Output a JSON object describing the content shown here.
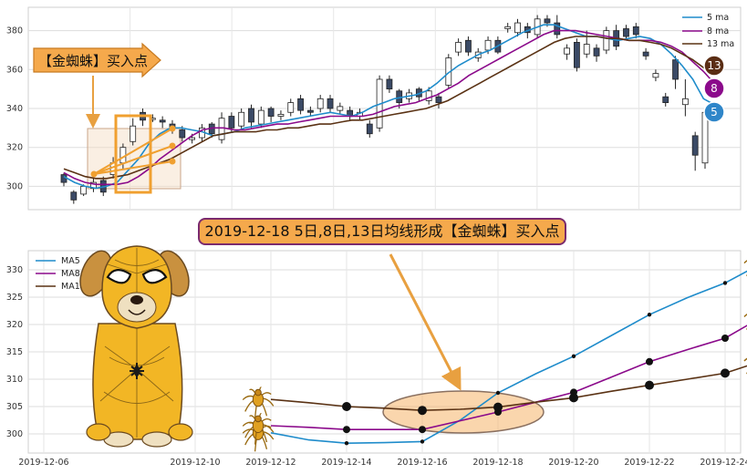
{
  "top_chart": {
    "callout_buy": "【金蜘蛛】买入点",
    "badges": [
      "13",
      "8",
      "5"
    ],
    "legend": [
      "5 ma",
      "8 ma",
      "13 ma"
    ],
    "colors": {
      "ma5": "#1f8ccb",
      "ma8": "#8b0a8b",
      "ma13": "#5a3214",
      "bear": "#3b4a66",
      "bull": "#ffffff",
      "highlight": "#f0a030"
    }
  },
  "bottom_chart": {
    "headline": "2019-12-18 5日,8日,13日均线形成【金蜘蛛】买入点",
    "legend": [
      "MA5",
      "MA8",
      "MA13"
    ]
  },
  "chart_data": [
    {
      "type": "candlestick",
      "title": "",
      "ylim": [
        288,
        392
      ],
      "yticks": [
        "300",
        "320",
        "340",
        "360",
        "380"
      ],
      "series": [
        {
          "name": "5 ma",
          "values": [
            305,
            302,
            300,
            299,
            300,
            302,
            308,
            314,
            322,
            327,
            330,
            330,
            329,
            328,
            326,
            327,
            328,
            330,
            331,
            332,
            333,
            334,
            335,
            336,
            337,
            338,
            337,
            336,
            338,
            341,
            343,
            345,
            346,
            347,
            349,
            353,
            358,
            362,
            365,
            368,
            370,
            373,
            376,
            379,
            381,
            383,
            383,
            381,
            379,
            377,
            377,
            376,
            375,
            376,
            377,
            376,
            373,
            368,
            362,
            355,
            345,
            342
          ]
        },
        {
          "name": "8 ma",
          "values": [
            307,
            304,
            302,
            301,
            301,
            301,
            302,
            305,
            309,
            314,
            318,
            322,
            326,
            329,
            330,
            330,
            329,
            329,
            330,
            331,
            332,
            332,
            333,
            334,
            335,
            336,
            336,
            336,
            336,
            337,
            339,
            341,
            342,
            343,
            345,
            347,
            350,
            353,
            357,
            360,
            363,
            366,
            369,
            372,
            375,
            378,
            380,
            380,
            380,
            379,
            378,
            377,
            376,
            375,
            375,
            375,
            374,
            372,
            369,
            364,
            359,
            353
          ]
        },
        {
          "name": "13 ma",
          "values": [
            309,
            307,
            305,
            304,
            304,
            305,
            306,
            308,
            310,
            312,
            314,
            317,
            320,
            323,
            326,
            327,
            328,
            328,
            328,
            329,
            329,
            330,
            330,
            331,
            332,
            332,
            333,
            334,
            334,
            335,
            336,
            337,
            338,
            339,
            340,
            342,
            344,
            347,
            350,
            353,
            356,
            359,
            362,
            365,
            368,
            371,
            374,
            376,
            377,
            377,
            377,
            376,
            376,
            375,
            375,
            374,
            373,
            371,
            368,
            365,
            361,
            358
          ]
        }
      ],
      "candles": [
        [
          306,
          302,
          307,
          300
        ],
        [
          297,
          293,
          298,
          291
        ],
        [
          296,
          300,
          301,
          295
        ],
        [
          299,
          302,
          304,
          297
        ],
        [
          303,
          297,
          305,
          295
        ],
        [
          306,
          312,
          315,
          304
        ],
        [
          312,
          320,
          322,
          309
        ],
        [
          323,
          331,
          335,
          321
        ],
        [
          338,
          334,
          340,
          331
        ],
        [
          335,
          335,
          337,
          333
        ],
        [
          334,
          333,
          336,
          330
        ],
        [
          332,
          330,
          334,
          327
        ],
        [
          329,
          325,
          331,
          323
        ],
        [
          324,
          325,
          327,
          322
        ],
        [
          325,
          330,
          332,
          323
        ],
        [
          332,
          327,
          333,
          325
        ],
        [
          324,
          335,
          338,
          322
        ],
        [
          336,
          330,
          338,
          328
        ],
        [
          331,
          338,
          340,
          329
        ],
        [
          340,
          333,
          342,
          330
        ],
        [
          332,
          339,
          341,
          330
        ],
        [
          340,
          336,
          341,
          333
        ],
        [
          336,
          337,
          339,
          334
        ],
        [
          338,
          343,
          345,
          336
        ],
        [
          345,
          339,
          347,
          337
        ],
        [
          339,
          338,
          341,
          336
        ],
        [
          340,
          345,
          347,
          338
        ],
        [
          345,
          340,
          347,
          338
        ],
        [
          339,
          341,
          343,
          337
        ],
        [
          339,
          336,
          341,
          334
        ],
        [
          336,
          338,
          340,
          334
        ],
        [
          332,
          327,
          334,
          325
        ],
        [
          330,
          355,
          357,
          328
        ],
        [
          355,
          350,
          357,
          348
        ],
        [
          349,
          343,
          350,
          340
        ],
        [
          345,
          348,
          350,
          343
        ],
        [
          350,
          346,
          351,
          344
        ],
        [
          344,
          349,
          351,
          342
        ],
        [
          346,
          343,
          348,
          340
        ],
        [
          352,
          366,
          368,
          350
        ],
        [
          369,
          374,
          376,
          367
        ],
        [
          375,
          369,
          377,
          367
        ],
        [
          366,
          369,
          371,
          364
        ],
        [
          370,
          375,
          377,
          368
        ],
        [
          375,
          369,
          377,
          368
        ],
        [
          381,
          382,
          384,
          379
        ],
        [
          379,
          384,
          386,
          377
        ],
        [
          382,
          379,
          384,
          376
        ],
        [
          378,
          386,
          388,
          376
        ],
        [
          386,
          384,
          388,
          382
        ],
        [
          384,
          378,
          388,
          376
        ],
        [
          368,
          371,
          373,
          365
        ],
        [
          374,
          361,
          376,
          359
        ],
        [
          368,
          373,
          380,
          366
        ],
        [
          371,
          367,
          373,
          364
        ],
        [
          370,
          380,
          382,
          368
        ],
        [
          380,
          372,
          383,
          370
        ],
        [
          381,
          377,
          383,
          375
        ],
        [
          382,
          378,
          384,
          376
        ],
        [
          369,
          367,
          371,
          365
        ],
        [
          356,
          358,
          360,
          354
        ],
        [
          346,
          343,
          348,
          341
        ],
        [
          365,
          355,
          367,
          350
        ],
        [
          342,
          345,
          355,
          336
        ],
        [
          326,
          316,
          328,
          308
        ],
        [
          312,
          338,
          340,
          309
        ]
      ]
    },
    {
      "type": "line",
      "title": "",
      "xlabel": "",
      "ylabel": "",
      "ylim": [
        296.5,
        333.5
      ],
      "yticks": [
        "300",
        "305",
        "310",
        "315",
        "320",
        "325",
        "330"
      ],
      "x_ticks": [
        "2019-12-06",
        "2019-12-10",
        "2019-12-12",
        "2019-12-14",
        "2019-12-16",
        "2019-12-18",
        "2019-12-20",
        "2019-12-22",
        "2019-12-24"
      ],
      "x": [
        "2019-12-12",
        "2019-12-13",
        "2019-12-14",
        "2019-12-15",
        "2019-12-16",
        "2019-12-17",
        "2019-12-18",
        "2019-12-19",
        "2019-12-20",
        "2019-12-21",
        "2019-12-22",
        "2019-12-23",
        "2019-12-24",
        "2019-12-25"
      ],
      "series": [
        {
          "name": "MA5",
          "values": [
            300.2,
            298.9,
            298.3,
            298.4,
            298.6,
            302.5,
            307.5,
            311.0,
            314.2,
            318.0,
            321.8,
            324.9,
            327.6,
            331.3
          ]
        },
        {
          "name": "MA8",
          "values": [
            301.5,
            301.2,
            300.8,
            300.8,
            300.8,
            302.4,
            304.0,
            305.8,
            307.6,
            310.4,
            313.2,
            315.4,
            317.5,
            321.5
          ]
        },
        {
          "name": "MA13",
          "values": [
            306.3,
            305.7,
            305.0,
            304.7,
            304.3,
            304.5,
            304.9,
            305.8,
            306.6,
            307.8,
            308.9,
            310.0,
            311.1,
            313.4
          ]
        }
      ],
      "markers_at": [
        "2019-12-14",
        "2019-12-16",
        "2019-12-18",
        "2019-12-20",
        "2019-12-22",
        "2019-12-24"
      ]
    }
  ]
}
